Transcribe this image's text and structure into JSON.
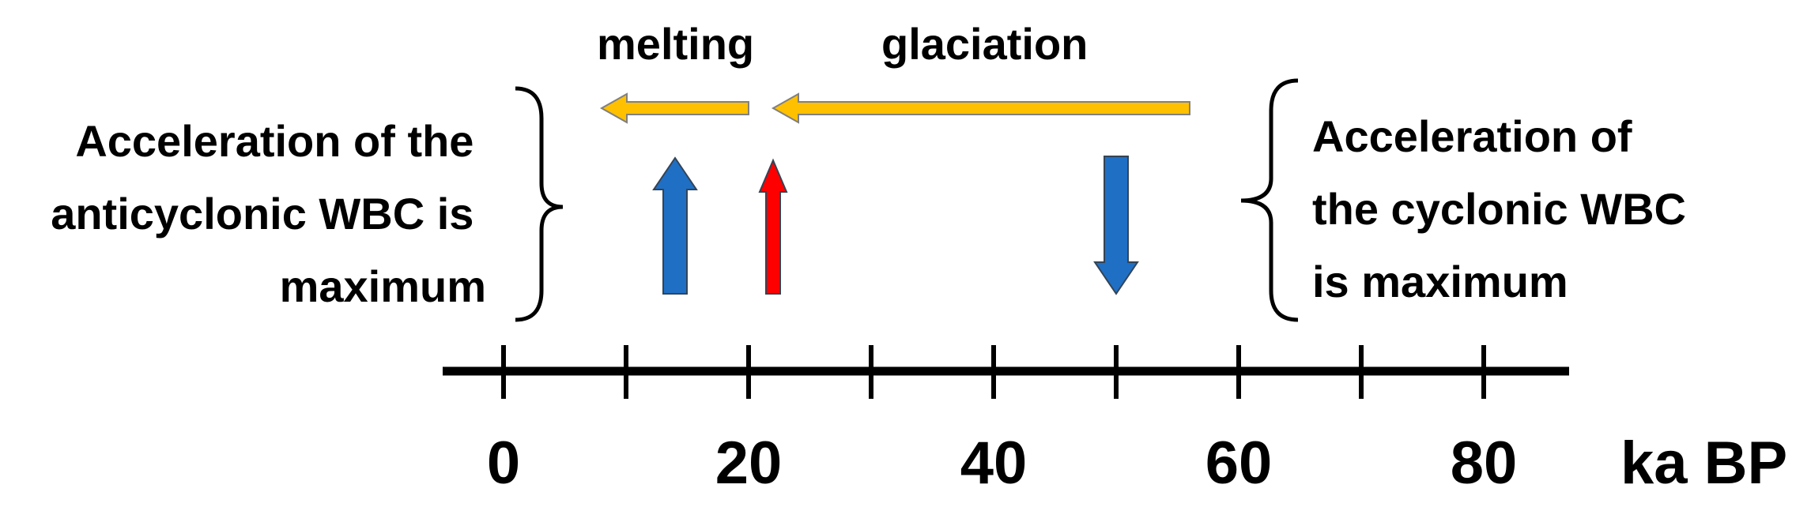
{
  "timeline": {
    "unit_label": "ka BP",
    "tick_values": [
      0,
      10,
      20,
      30,
      40,
      50,
      60,
      70,
      80
    ],
    "tick_labels": [
      {
        "value": 0,
        "text": "0"
      },
      {
        "value": 20,
        "text": "20"
      },
      {
        "value": 40,
        "text": "40"
      },
      {
        "value": 60,
        "text": "60"
      },
      {
        "value": 80,
        "text": "80"
      }
    ]
  },
  "phases": {
    "melting": {
      "label": "melting",
      "from": 20,
      "to": 8,
      "color": "#FFC000"
    },
    "glaciation": {
      "label": "glaciation",
      "from": 56,
      "to": 22,
      "color": "#FFC000"
    }
  },
  "events": [
    {
      "name": "blue-up-arrow",
      "value": 14,
      "direction": "up",
      "color": "#1F6FC5"
    },
    {
      "name": "red-up-arrow",
      "value": 22,
      "direction": "up",
      "color": "#FF0000"
    },
    {
      "name": "blue-down-arrow",
      "value": 50,
      "direction": "down",
      "color": "#1F6FC5"
    }
  ],
  "left_note": {
    "lines": [
      "Acceleration of the",
      "anticyclonic WBC is",
      "maximum"
    ]
  },
  "right_note": {
    "lines": [
      "Acceleration of",
      "the cyclonic WBC",
      "is maximum"
    ]
  }
}
